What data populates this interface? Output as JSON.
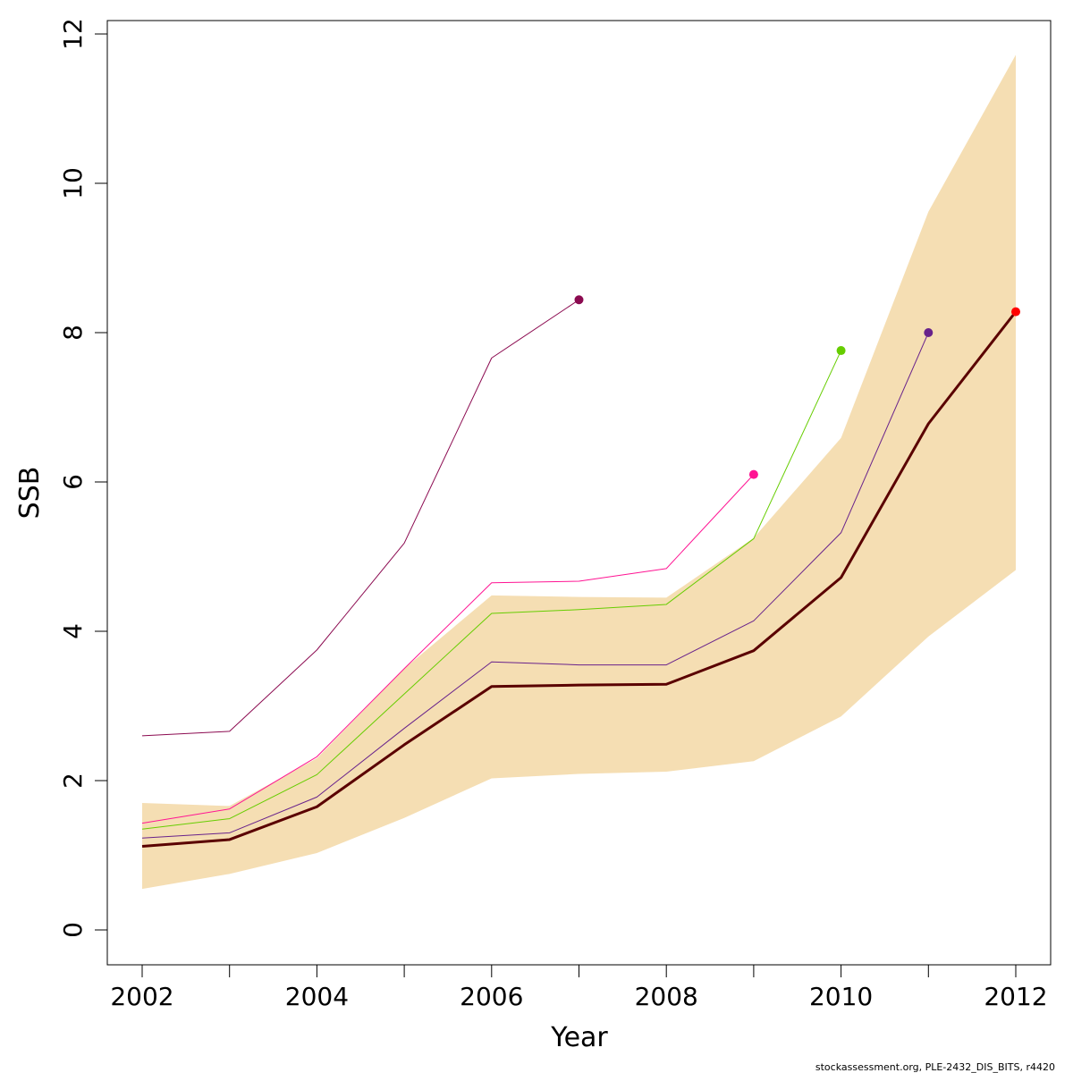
{
  "chart_data": {
    "type": "line",
    "xlabel": "Year",
    "ylabel": "SSB",
    "xlim": [
      2002,
      2012
    ],
    "ylim": [
      0,
      12
    ],
    "x_ticks": [
      "2002",
      "2004",
      "2006",
      "2008",
      "2010",
      "2012"
    ],
    "y_ticks": [
      "0",
      "2",
      "4",
      "6",
      "8",
      "10",
      "12"
    ],
    "grid": false,
    "legend": "none",
    "band": {
      "color": "#f5deb3",
      "x": [
        2002,
        2003,
        2004,
        2005,
        2006,
        2007,
        2008,
        2009,
        2010,
        2011,
        2012
      ],
      "lower": [
        0.55,
        0.75,
        1.03,
        1.5,
        2.03,
        2.09,
        2.12,
        2.26,
        2.86,
        3.93,
        4.82
      ],
      "upper": [
        1.7,
        1.66,
        2.3,
        3.5,
        4.48,
        4.46,
        4.45,
        5.25,
        6.59,
        9.62,
        11.72
      ]
    },
    "series": [
      {
        "color": "#8b0a50",
        "x": [
          2002,
          2003,
          2004,
          2005,
          2006,
          2007
        ],
        "values": [
          2.6,
          2.66,
          3.75,
          5.18,
          7.66,
          8.44
        ]
      },
      {
        "color": "#ff1493",
        "x": [
          2002,
          2003,
          2004,
          2005,
          2006,
          2007,
          2008,
          2009
        ],
        "values": [
          1.43,
          1.62,
          2.32,
          3.5,
          4.65,
          4.67,
          4.84,
          6.1
        ]
      },
      {
        "color": "#66cd00",
        "x": [
          2002,
          2003,
          2004,
          2005,
          2006,
          2007,
          2008,
          2009,
          2010
        ],
        "values": [
          1.35,
          1.49,
          2.08,
          3.16,
          4.24,
          4.29,
          4.36,
          5.24,
          7.76
        ]
      },
      {
        "color": "#68228b",
        "x": [
          2002,
          2003,
          2004,
          2005,
          2006,
          2007,
          2008,
          2009,
          2010,
          2011
        ],
        "values": [
          1.23,
          1.3,
          1.78,
          2.7,
          3.59,
          3.55,
          3.55,
          4.14,
          5.32,
          8.0
        ]
      },
      {
        "color": "#5a0000",
        "x": [
          2002,
          2003,
          2004,
          2005,
          2006,
          2007,
          2008,
          2009,
          2010,
          2011,
          2012
        ],
        "values": [
          1.12,
          1.21,
          1.65,
          2.48,
          3.26,
          3.28,
          3.29,
          3.74,
          4.72,
          6.78,
          8.28
        ],
        "endpoint_color": "#ff0000"
      }
    ]
  },
  "footer": {
    "text": "stockassessment.org, PLE-2432_DIS_BITS, r4420"
  }
}
